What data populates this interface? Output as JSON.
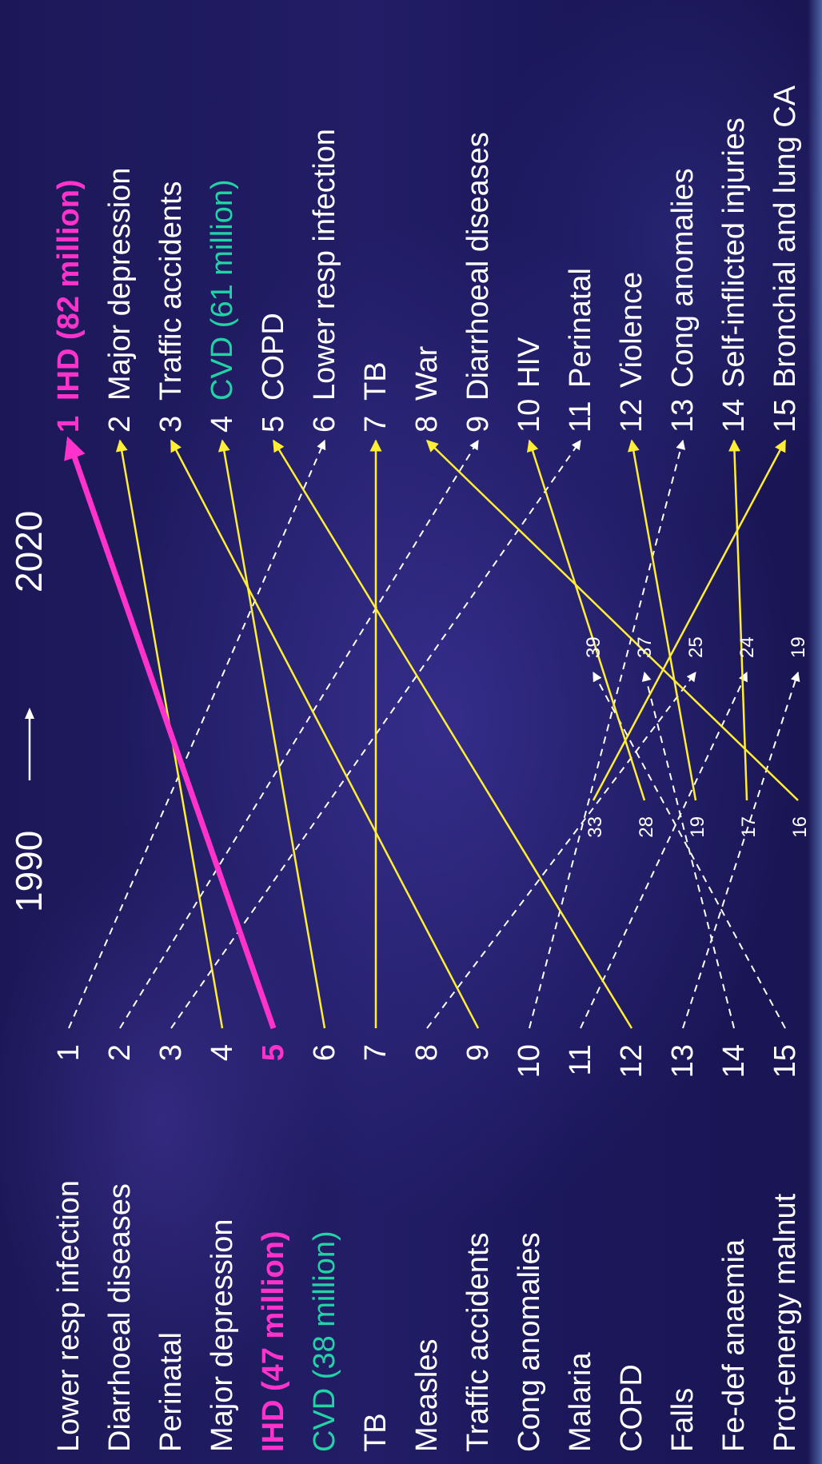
{
  "header": {
    "year_from": "1990",
    "year_to": "2020"
  },
  "colors": {
    "text": "#ffffff",
    "ihd": "#ff33cc",
    "cvd": "#22d3a6",
    "arrow_up": "#ffee33",
    "arrow_down": "#ffffff"
  },
  "rank_1990": [
    {
      "rank": "1",
      "name": "Lower resp infection"
    },
    {
      "rank": "2",
      "name": "Diarrhoeal diseases"
    },
    {
      "rank": "3",
      "name": "Perinatal"
    },
    {
      "rank": "4",
      "name": "Major depression"
    },
    {
      "rank": "5",
      "name": "IHD (47 million)",
      "label": "IHD",
      "value": "(47 million)"
    },
    {
      "rank": "6",
      "name": "CVD (38 million)",
      "label": "CVD",
      "value": "(38 million)"
    },
    {
      "rank": "7",
      "name": "TB"
    },
    {
      "rank": "8",
      "name": "Measles"
    },
    {
      "rank": "9",
      "name": "Traffic accidents"
    },
    {
      "rank": "10",
      "name": "Cong anomalies"
    },
    {
      "rank": "11",
      "name": "Malaria"
    },
    {
      "rank": "12",
      "name": "COPD"
    },
    {
      "rank": "13",
      "name": "Falls"
    },
    {
      "rank": "14",
      "name": "Fe-def anaemia"
    },
    {
      "rank": "15",
      "name": "Prot-energy malnut"
    }
  ],
  "rank_2020": [
    {
      "rank": "1",
      "name": "IHD (82 million)",
      "label": "IHD",
      "value": "(82 million)"
    },
    {
      "rank": "2",
      "name": "Major depression"
    },
    {
      "rank": "3",
      "name": "Traffic accidents"
    },
    {
      "rank": "4",
      "name": "CVD (61 million)",
      "label": "CVD",
      "value": "(61 million)"
    },
    {
      "rank": "5",
      "name": "COPD"
    },
    {
      "rank": "6",
      "name": "Lower resp infection"
    },
    {
      "rank": "7",
      "name": "TB"
    },
    {
      "rank": "8",
      "name": "War"
    },
    {
      "rank": "9",
      "name": "Diarrhoeal diseases"
    },
    {
      "rank": "10",
      "name": "HIV"
    },
    {
      "rank": "11",
      "name": "Perinatal"
    },
    {
      "rank": "12",
      "name": "Violence"
    },
    {
      "rank": "13",
      "name": "Cong anomalies"
    },
    {
      "rank": "14",
      "name": "Self-inflicted injuries"
    },
    {
      "rank": "15",
      "name": "Bronchial and lung CA"
    }
  ],
  "lower_ranks_1990": [
    "16",
    "17",
    "19",
    "28",
    "33"
  ],
  "lower_ranks_2020": [
    "19",
    "24",
    "25",
    "37",
    "39"
  ],
  "links": [
    {
      "from": "1",
      "to": "6",
      "style": "down"
    },
    {
      "from": "2",
      "to": "9",
      "style": "down"
    },
    {
      "from": "3",
      "to": "11",
      "style": "down"
    },
    {
      "from": "4",
      "to": "2",
      "style": "up"
    },
    {
      "from": "5",
      "to": "1",
      "style": "highlight"
    },
    {
      "from": "6",
      "to": "4",
      "style": "up"
    },
    {
      "from": "7",
      "to": "7",
      "style": "up"
    },
    {
      "from": "8",
      "to": "25",
      "style": "down"
    },
    {
      "from": "9",
      "to": "3",
      "style": "up"
    },
    {
      "from": "10",
      "to": "13",
      "style": "down"
    },
    {
      "from": "11",
      "to": "24",
      "style": "down"
    },
    {
      "from": "12",
      "to": "5",
      "style": "up"
    },
    {
      "from": "13",
      "to": "19",
      "style": "down"
    },
    {
      "from": "14",
      "to": "37",
      "style": "down"
    },
    {
      "from": "15",
      "to": "39",
      "style": "down"
    },
    {
      "from": "16",
      "to": "8",
      "style": "up"
    },
    {
      "from": "17",
      "to": "14",
      "style": "up"
    },
    {
      "from": "19",
      "to": "12",
      "style": "up"
    },
    {
      "from": "28",
      "to": "10",
      "style": "up"
    },
    {
      "from": "33",
      "to": "15",
      "style": "up"
    }
  ]
}
